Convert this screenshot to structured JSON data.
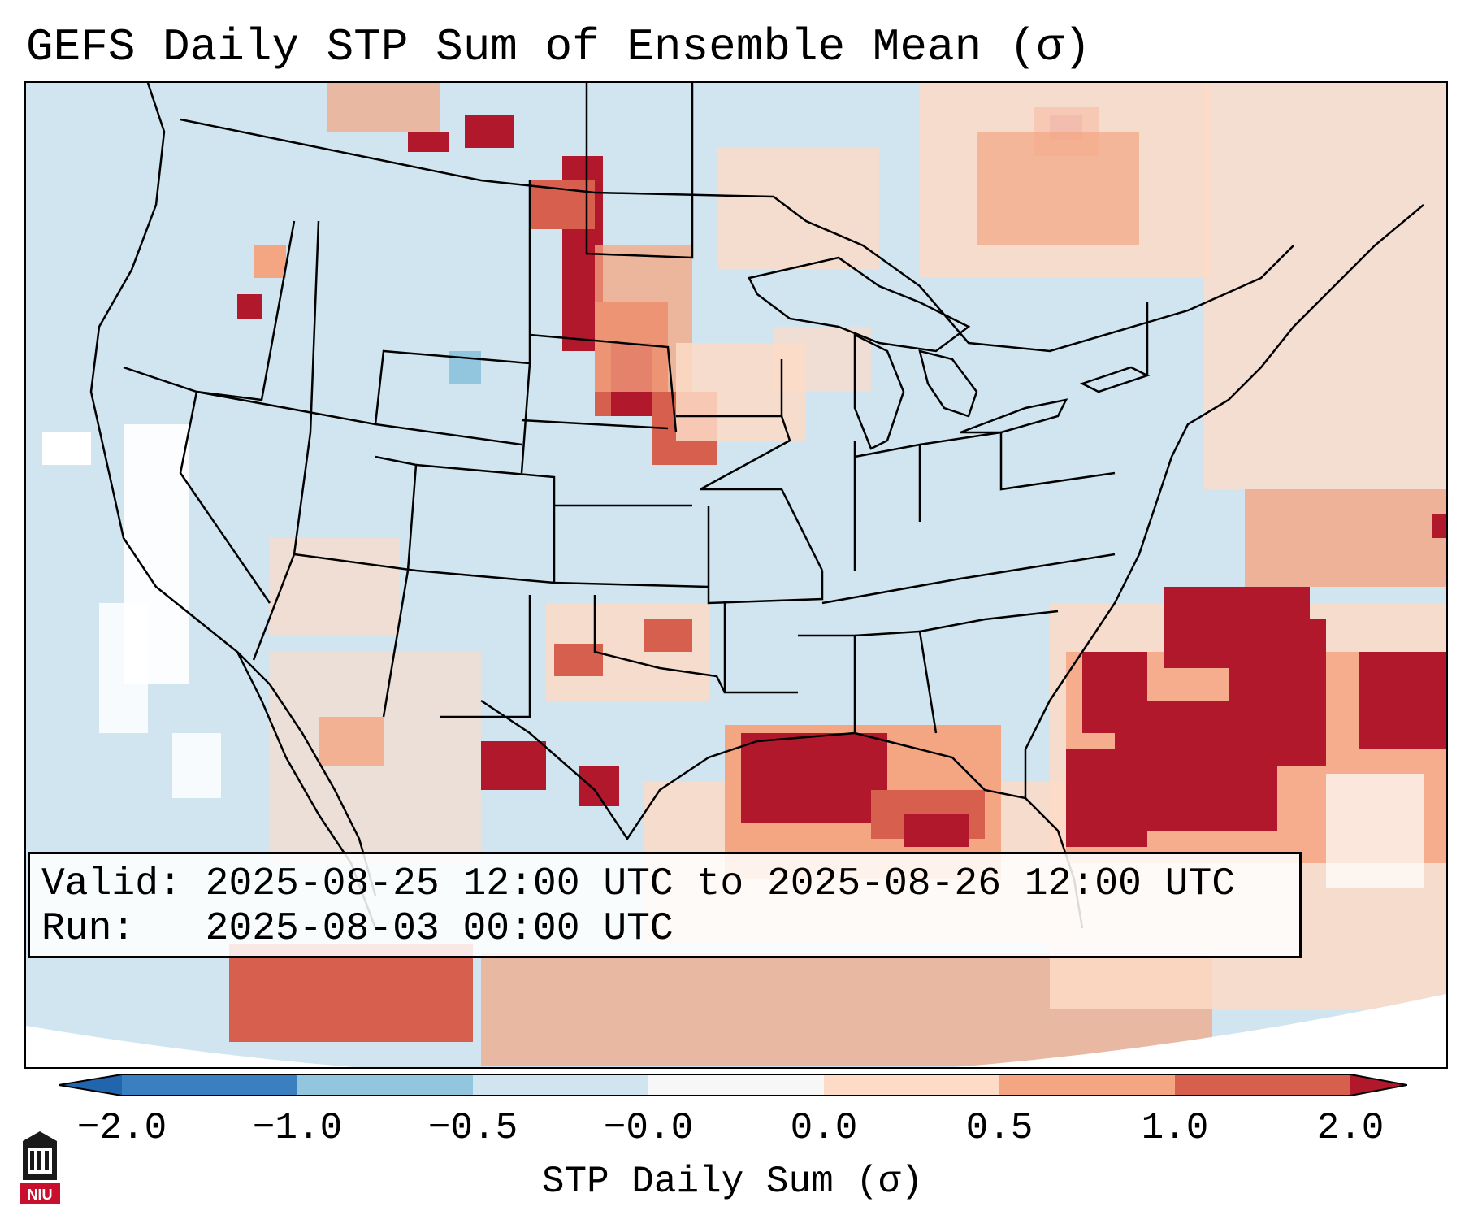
{
  "title": "GEFS Daily STP Sum of Ensemble Mean (σ)",
  "info": {
    "valid_label": "Valid:",
    "valid_value": "2025-08-25 12:00 UTC to 2025-08-26 12:00 UTC",
    "run_label": "Run:",
    "run_value": "2025-08-03 00:00 UTC"
  },
  "colorbar": {
    "label": "STP Daily Sum (σ)",
    "ticks": [
      "−2.0",
      "−1.0",
      "−0.5",
      "−0.0",
      "0.0",
      "0.5",
      "1.0",
      "2.0"
    ],
    "colors": [
      "#3a7fbf",
      "#92c5de",
      "#d1e5f0",
      "#f7f7f7",
      "#fddbc7",
      "#f4a582",
      "#d6604d"
    ],
    "extend_low_color": "#2166ac",
    "extend_high_color": "#b2182b"
  },
  "map": {
    "background_color": "#d1e5f0",
    "projection_edge_color": "#ffffff",
    "boundary_color": "#000000"
  },
  "logo": {
    "text": "NIU",
    "color": "#c8102e"
  }
}
